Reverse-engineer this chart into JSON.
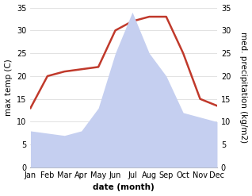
{
  "months": [
    "Jan",
    "Feb",
    "Mar",
    "Apr",
    "May",
    "Jun",
    "Jul",
    "Aug",
    "Sep",
    "Oct",
    "Nov",
    "Dec"
  ],
  "temperature": [
    13,
    20,
    21,
    21.5,
    22,
    30,
    32,
    33,
    33,
    25,
    15,
    13.5
  ],
  "precipitation": [
    8,
    7.5,
    7,
    8,
    13,
    25,
    34,
    25,
    20,
    12,
    11,
    10
  ],
  "temp_color": "#c0392b",
  "precip_color": "#c5cff0",
  "left_ylabel": "max temp (C)",
  "right_ylabel": "med. precipitation (kg/m2)",
  "xlabel": "date (month)",
  "ylim_left": [
    0,
    35
  ],
  "ylim_right": [
    0,
    35
  ],
  "background_color": "#ffffff",
  "grid_color": "#dddddd",
  "label_fontsize": 7.5,
  "tick_fontsize": 7
}
